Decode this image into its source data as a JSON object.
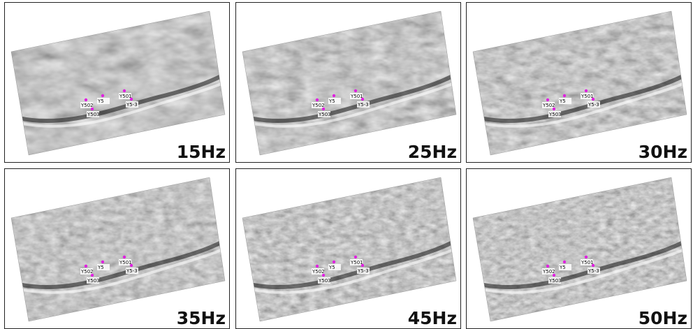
{
  "panels": [
    {
      "label": "15Hz"
    },
    {
      "label": "25Hz"
    },
    {
      "label": "30Hz"
    },
    {
      "label": "35Hz"
    },
    {
      "label": "45Hz"
    },
    {
      "label": "50Hz"
    }
  ],
  "wells": [
    "Y502",
    "Y5",
    "Y501",
    "Y5-3",
    "Y503"
  ]
}
